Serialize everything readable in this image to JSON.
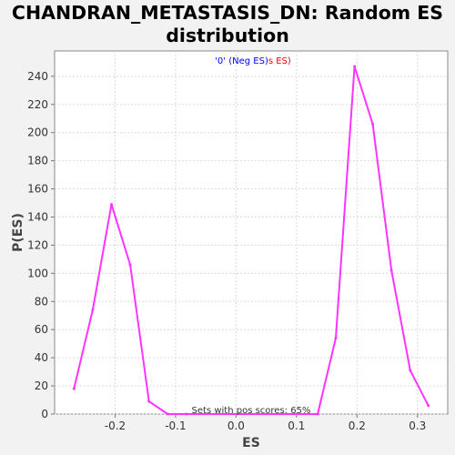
{
  "chart_data": {
    "type": "line",
    "title": "CHANDRAN_METASTASIS_DN: Random ES distribution",
    "title_lines": [
      "CHANDRAN_METASTASIS_DN: Random ES",
      "distribution"
    ],
    "xlabel": "ES",
    "ylabel": "P(ES)",
    "xlim": [
      -0.3,
      0.35
    ],
    "ylim": [
      0,
      258
    ],
    "x_ticks": [
      -0.2,
      -0.1,
      0.0,
      0.1,
      0.2,
      0.3
    ],
    "x_tick_labels": [
      "-0.2",
      "-0.1",
      "0.0",
      "0.1",
      "0.2",
      "0.3"
    ],
    "y_ticks": [
      0,
      20,
      40,
      60,
      80,
      100,
      120,
      140,
      160,
      180,
      200,
      220,
      240
    ],
    "y_tick_labels": [
      "0",
      "20",
      "40",
      "60",
      "80",
      "100",
      "120",
      "140",
      "160",
      "180",
      "200",
      "220",
      "240"
    ],
    "grid": true,
    "legend_text": {
      "part1": "'0' (Neg ES)",
      "part2": "s ES)",
      "color1": "#0000ff",
      "color2": "#ff0000"
    },
    "annotation": "Sets with pos scores: 65%",
    "series": [
      {
        "color": "#ff33ff",
        "x": [
          -0.268,
          -0.237,
          -0.206,
          -0.175,
          -0.144,
          -0.113,
          -0.082,
          0.135,
          0.165,
          0.196,
          0.226,
          0.257,
          0.288,
          0.318
        ],
        "y": [
          18,
          74,
          149,
          106,
          9,
          0,
          0,
          0,
          54,
          247,
          206,
          102,
          31,
          6
        ]
      }
    ]
  }
}
